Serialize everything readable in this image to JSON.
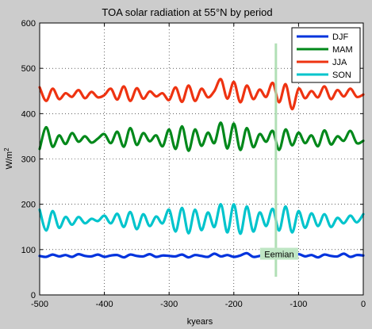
{
  "chart_data": {
    "type": "line",
    "title": "TOA solar radiation at 55°N by period",
    "xlabel": "kyears",
    "ylabel": "W/m",
    "ylabel_sup": "2",
    "xlim": [
      -500,
      0
    ],
    "ylim": [
      0,
      600
    ],
    "xticks": [
      -500,
      -400,
      -300,
      -200,
      -100,
      0
    ],
    "yticks": [
      0,
      100,
      200,
      300,
      400,
      500,
      600
    ],
    "grid": true,
    "legend_position": "top-right",
    "series": [
      {
        "name": "DJF",
        "color": "#0033dd",
        "x": [
          -500,
          -490,
          -480,
          -470,
          -460,
          -450,
          -440,
          -430,
          -420,
          -410,
          -400,
          -390,
          -380,
          -370,
          -360,
          -350,
          -340,
          -330,
          -320,
          -310,
          -300,
          -290,
          -280,
          -270,
          -260,
          -250,
          -240,
          -230,
          -220,
          -210,
          -200,
          -190,
          -180,
          -170,
          -160,
          -150,
          -140,
          -130,
          -120,
          -110,
          -100,
          -90,
          -80,
          -70,
          -60,
          -50,
          -40,
          -30,
          -20,
          -10,
          0
        ],
        "y": [
          86,
          84,
          89,
          85,
          88,
          84,
          90,
          86,
          85,
          89,
          84,
          87,
          88,
          83,
          89,
          86,
          85,
          90,
          84,
          87,
          86,
          85,
          89,
          83,
          88,
          86,
          84,
          91,
          85,
          88,
          84,
          87,
          92,
          84,
          86,
          89,
          83,
          88,
          87,
          84,
          90,
          85,
          88,
          83,
          89,
          86,
          85,
          91,
          84,
          88,
          87
        ]
      },
      {
        "name": "MAM",
        "color": "#00881a",
        "x": [
          -500,
          -490,
          -480,
          -470,
          -460,
          -450,
          -440,
          -430,
          -420,
          -410,
          -400,
          -390,
          -380,
          -370,
          -360,
          -350,
          -340,
          -330,
          -320,
          -310,
          -300,
          -290,
          -280,
          -270,
          -260,
          -250,
          -240,
          -230,
          -220,
          -210,
          -200,
          -190,
          -180,
          -170,
          -160,
          -150,
          -140,
          -130,
          -120,
          -110,
          -100,
          -90,
          -80,
          -70,
          -60,
          -50,
          -40,
          -30,
          -20,
          -10,
          0
        ],
        "y": [
          322,
          370,
          327,
          352,
          333,
          357,
          338,
          350,
          336,
          345,
          355,
          335,
          360,
          327,
          368,
          331,
          357,
          339,
          352,
          328,
          365,
          322,
          372,
          318,
          365,
          329,
          358,
          335,
          380,
          323,
          378,
          320,
          368,
          326,
          355,
          338,
          362,
          320,
          365,
          330,
          358,
          335,
          352,
          328,
          363,
          332,
          350,
          340,
          362,
          335,
          340
        ]
      },
      {
        "name": "JJA",
        "color": "#ee3311",
        "x": [
          -500,
          -490,
          -480,
          -470,
          -460,
          -450,
          -440,
          -430,
          -420,
          -410,
          -400,
          -390,
          -380,
          -370,
          -360,
          -350,
          -340,
          -330,
          -320,
          -310,
          -300,
          -290,
          -280,
          -270,
          -260,
          -250,
          -240,
          -230,
          -220,
          -210,
          -200,
          -190,
          -180,
          -170,
          -160,
          -150,
          -140,
          -130,
          -120,
          -110,
          -100,
          -90,
          -80,
          -70,
          -60,
          -50,
          -40,
          -30,
          -20,
          -10,
          0
        ],
        "y": [
          458,
          428,
          455,
          432,
          445,
          437,
          452,
          434,
          448,
          436,
          441,
          455,
          431,
          460,
          428,
          456,
          433,
          449,
          438,
          445,
          430,
          458,
          426,
          462,
          428,
          455,
          436,
          450,
          476,
          433,
          470,
          425,
          462,
          432,
          453,
          437,
          468,
          425,
          465,
          410,
          455,
          434,
          450,
          436,
          460,
          432,
          452,
          438,
          455,
          437,
          442
        ]
      },
      {
        "name": "SON",
        "color": "#00c4cc",
        "x": [
          -500,
          -490,
          -480,
          -470,
          -460,
          -450,
          -440,
          -430,
          -420,
          -410,
          -400,
          -390,
          -380,
          -370,
          -360,
          -350,
          -340,
          -330,
          -320,
          -310,
          -300,
          -290,
          -280,
          -270,
          -260,
          -250,
          -240,
          -230,
          -220,
          -210,
          -200,
          -190,
          -180,
          -170,
          -160,
          -150,
          -140,
          -130,
          -120,
          -110,
          -100,
          -90,
          -80,
          -70,
          -60,
          -50,
          -40,
          -30,
          -20,
          -10,
          0
        ],
        "y": [
          188,
          142,
          185,
          148,
          172,
          155,
          172,
          158,
          168,
          163,
          175,
          158,
          179,
          150,
          183,
          145,
          178,
          152,
          173,
          158,
          188,
          140,
          192,
          136,
          188,
          143,
          182,
          150,
          200,
          138,
          200,
          135,
          195,
          140,
          182,
          152,
          190,
          142,
          195,
          138,
          185,
          148,
          180,
          152,
          178,
          150,
          170,
          158,
          175,
          160,
          178
        ]
      }
    ],
    "annotations": [
      {
        "text": "Eemian",
        "x": -130,
        "y": 90,
        "bar_x": -135,
        "bar_y_range": [
          40,
          555
        ]
      }
    ]
  }
}
